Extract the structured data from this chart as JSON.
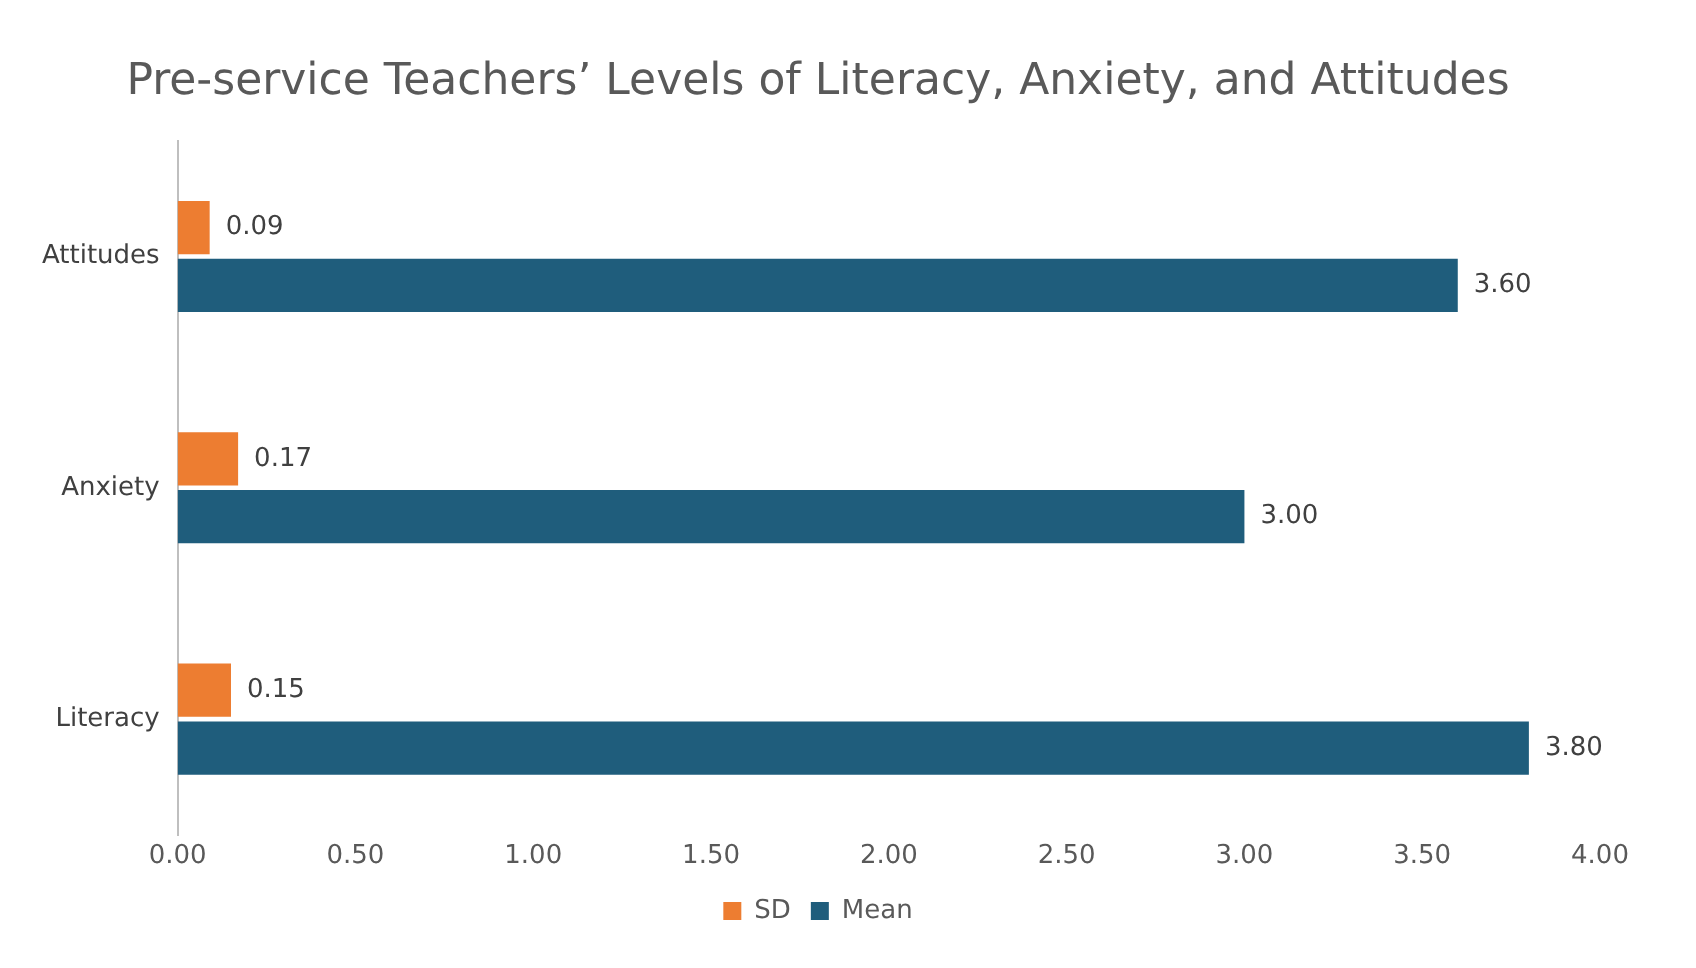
{
  "chart_data": {
    "type": "bar",
    "orientation": "horizontal",
    "title": "Pre-service Teachers’ Levels of Literacy, Anxiety, and Attitudes",
    "categories": [
      "Attitudes",
      "Anxiety",
      "Literacy"
    ],
    "series": [
      {
        "name": "SD",
        "color": "#ed7d31",
        "values": [
          0.09,
          0.17,
          0.15
        ],
        "value_labels": [
          "0.09",
          "0.17",
          "0.15"
        ]
      },
      {
        "name": "Mean",
        "color": "#1f5d7c",
        "values": [
          3.6,
          3.0,
          3.8
        ],
        "value_labels": [
          "3.60",
          "3.00",
          "3.80"
        ]
      }
    ],
    "xlim": [
      0,
      4
    ],
    "xticks": [
      {
        "value": 0,
        "label": "0.00"
      },
      {
        "value": 0.5,
        "label": "0.50"
      },
      {
        "value": 1,
        "label": "1.00"
      },
      {
        "value": 1.5,
        "label": "1.50"
      },
      {
        "value": 2,
        "label": "2.00"
      },
      {
        "value": 2.5,
        "label": "2.50"
      },
      {
        "value": 3,
        "label": "3.00"
      },
      {
        "value": 3.5,
        "label": "3.50"
      },
      {
        "value": 4,
        "label": "4.00"
      }
    ],
    "grid": false,
    "legend": "bottom"
  }
}
